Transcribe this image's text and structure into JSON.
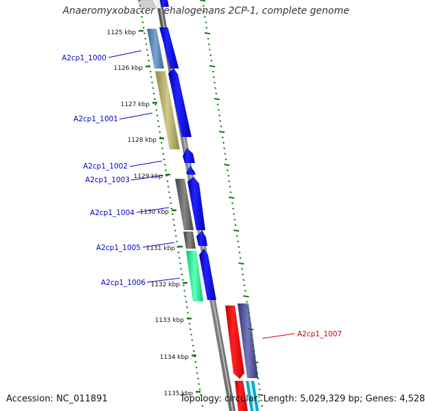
{
  "title": "Anaeromyxobacter dehalogenans 2CP-1, complete genome",
  "footer": {
    "accession": "Accession: NC_011891",
    "summary": "Topology: circular; Length: 5,029,329 bp; Genes: 4,528"
  },
  "ticks": [
    "1125 kbp",
    "1126 kbp",
    "1127 kbp",
    "1128 kbp",
    "1129 kbp",
    "1130 kbp",
    "1131 kbp",
    "1132 kbp",
    "1133 kbp",
    "1134 kbp",
    "1135 kbp"
  ],
  "gene_labels": [
    {
      "text": "A2cp1_1000",
      "color": "#0000cc"
    },
    {
      "text": "A2cp1_1001",
      "color": "#0000cc"
    },
    {
      "text": "A2cp1_1002",
      "color": "#0000cc"
    },
    {
      "text": "A2cp1_1003",
      "color": "#0000cc"
    },
    {
      "text": "A2cp1_1004",
      "color": "#0000cc"
    },
    {
      "text": "A2cp1_1005",
      "color": "#0000cc"
    },
    {
      "text": "A2cp1_1006",
      "color": "#0000cc"
    },
    {
      "text": "A2cp1_1007",
      "color": "#cc0000"
    }
  ],
  "colors": {
    "cds": "#0000ee",
    "cds_reverse": "#ee0000",
    "backbone": "#888888",
    "tick": "#117711",
    "gc_skew": "#117711"
  }
}
